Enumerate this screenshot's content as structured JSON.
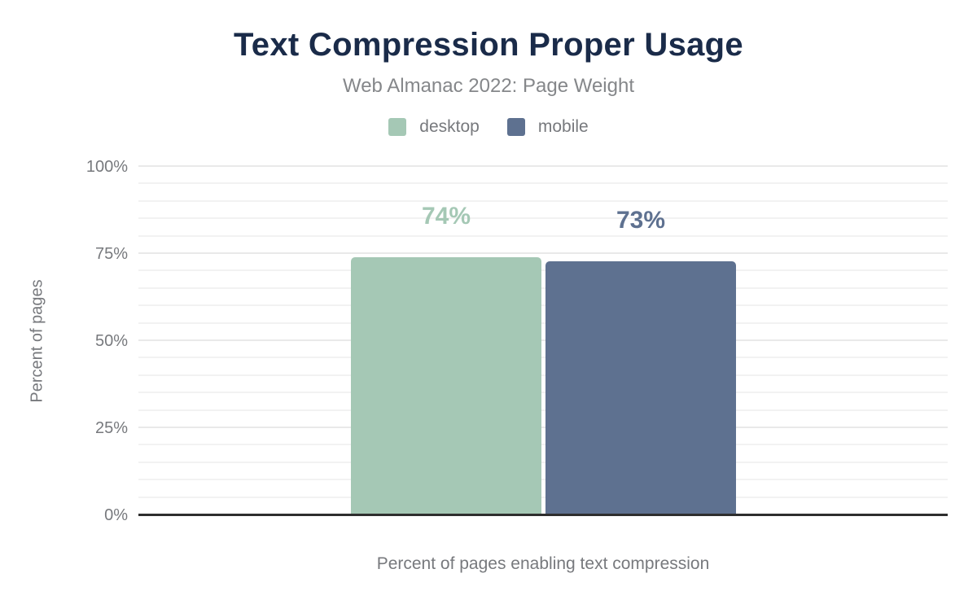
{
  "header": {
    "title": "Text Compression Proper Usage",
    "subtitle": "Web Almanac 2022: Page Weight"
  },
  "legend": {
    "items": [
      {
        "label": "desktop",
        "color": "#a5c8b5"
      },
      {
        "label": "mobile",
        "color": "#5e7190"
      }
    ]
  },
  "chart_data": {
    "type": "bar",
    "title": "Text Compression Proper Usage",
    "subtitle": "Web Almanac 2022: Page Weight",
    "categories": [
      "text compression"
    ],
    "series": [
      {
        "name": "desktop",
        "values": [
          74
        ],
        "data_labels": [
          "74%"
        ],
        "color": "#a5c8b5"
      },
      {
        "name": "mobile",
        "values": [
          73
        ],
        "data_labels": [
          "73%"
        ],
        "color": "#5e7190"
      }
    ],
    "xlabel": "Percent of pages enabling text compression",
    "ylabel": "Percent of pages",
    "ylim": [
      0,
      100
    ],
    "yticks": [
      {
        "value": 100,
        "label": "100%"
      },
      {
        "value": 75,
        "label": "75%"
      },
      {
        "value": 50,
        "label": "50%"
      },
      {
        "value": 25,
        "label": "25%"
      },
      {
        "value": 0,
        "label": "0%"
      }
    ],
    "grid": {
      "visible": true,
      "minor_step": 5,
      "major_step": 25
    },
    "legend_position": "top"
  },
  "colors": {
    "title": "#1a2b49",
    "subtitle": "#85878a",
    "axis_text": "#77797d",
    "gridline_minor": "#f2f2f2",
    "gridline_major": "#e9e9e9",
    "axis_line": "#2e2e2e",
    "background": "#ffffff"
  }
}
